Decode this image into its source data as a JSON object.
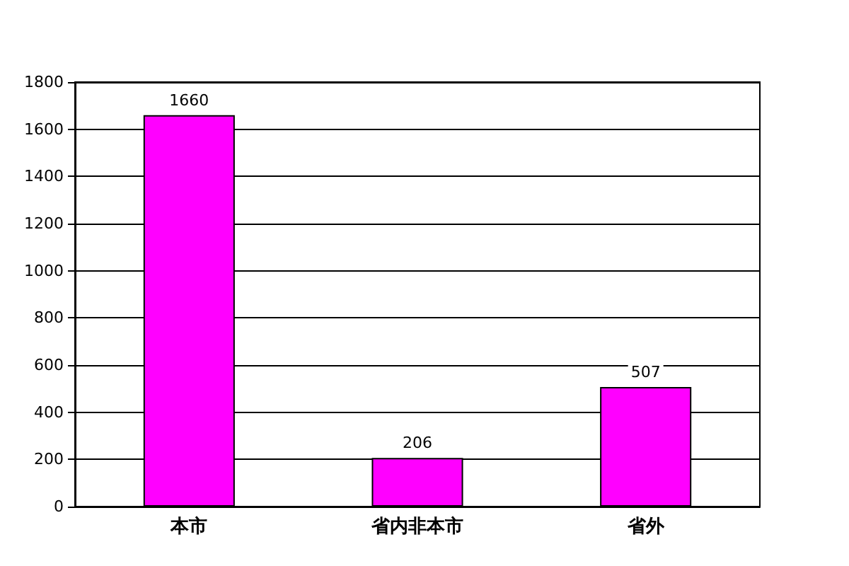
{
  "chart_data": {
    "type": "bar",
    "categories": [
      "本市",
      "省内非本市",
      "省外"
    ],
    "values": [
      1660,
      206,
      507
    ],
    "color": "#ff00ff",
    "ylim": [
      0,
      1800
    ],
    "yticks": [
      0,
      200,
      400,
      600,
      800,
      1000,
      1200,
      1400,
      1600,
      1800
    ],
    "grid": "y",
    "data_labels": true
  }
}
